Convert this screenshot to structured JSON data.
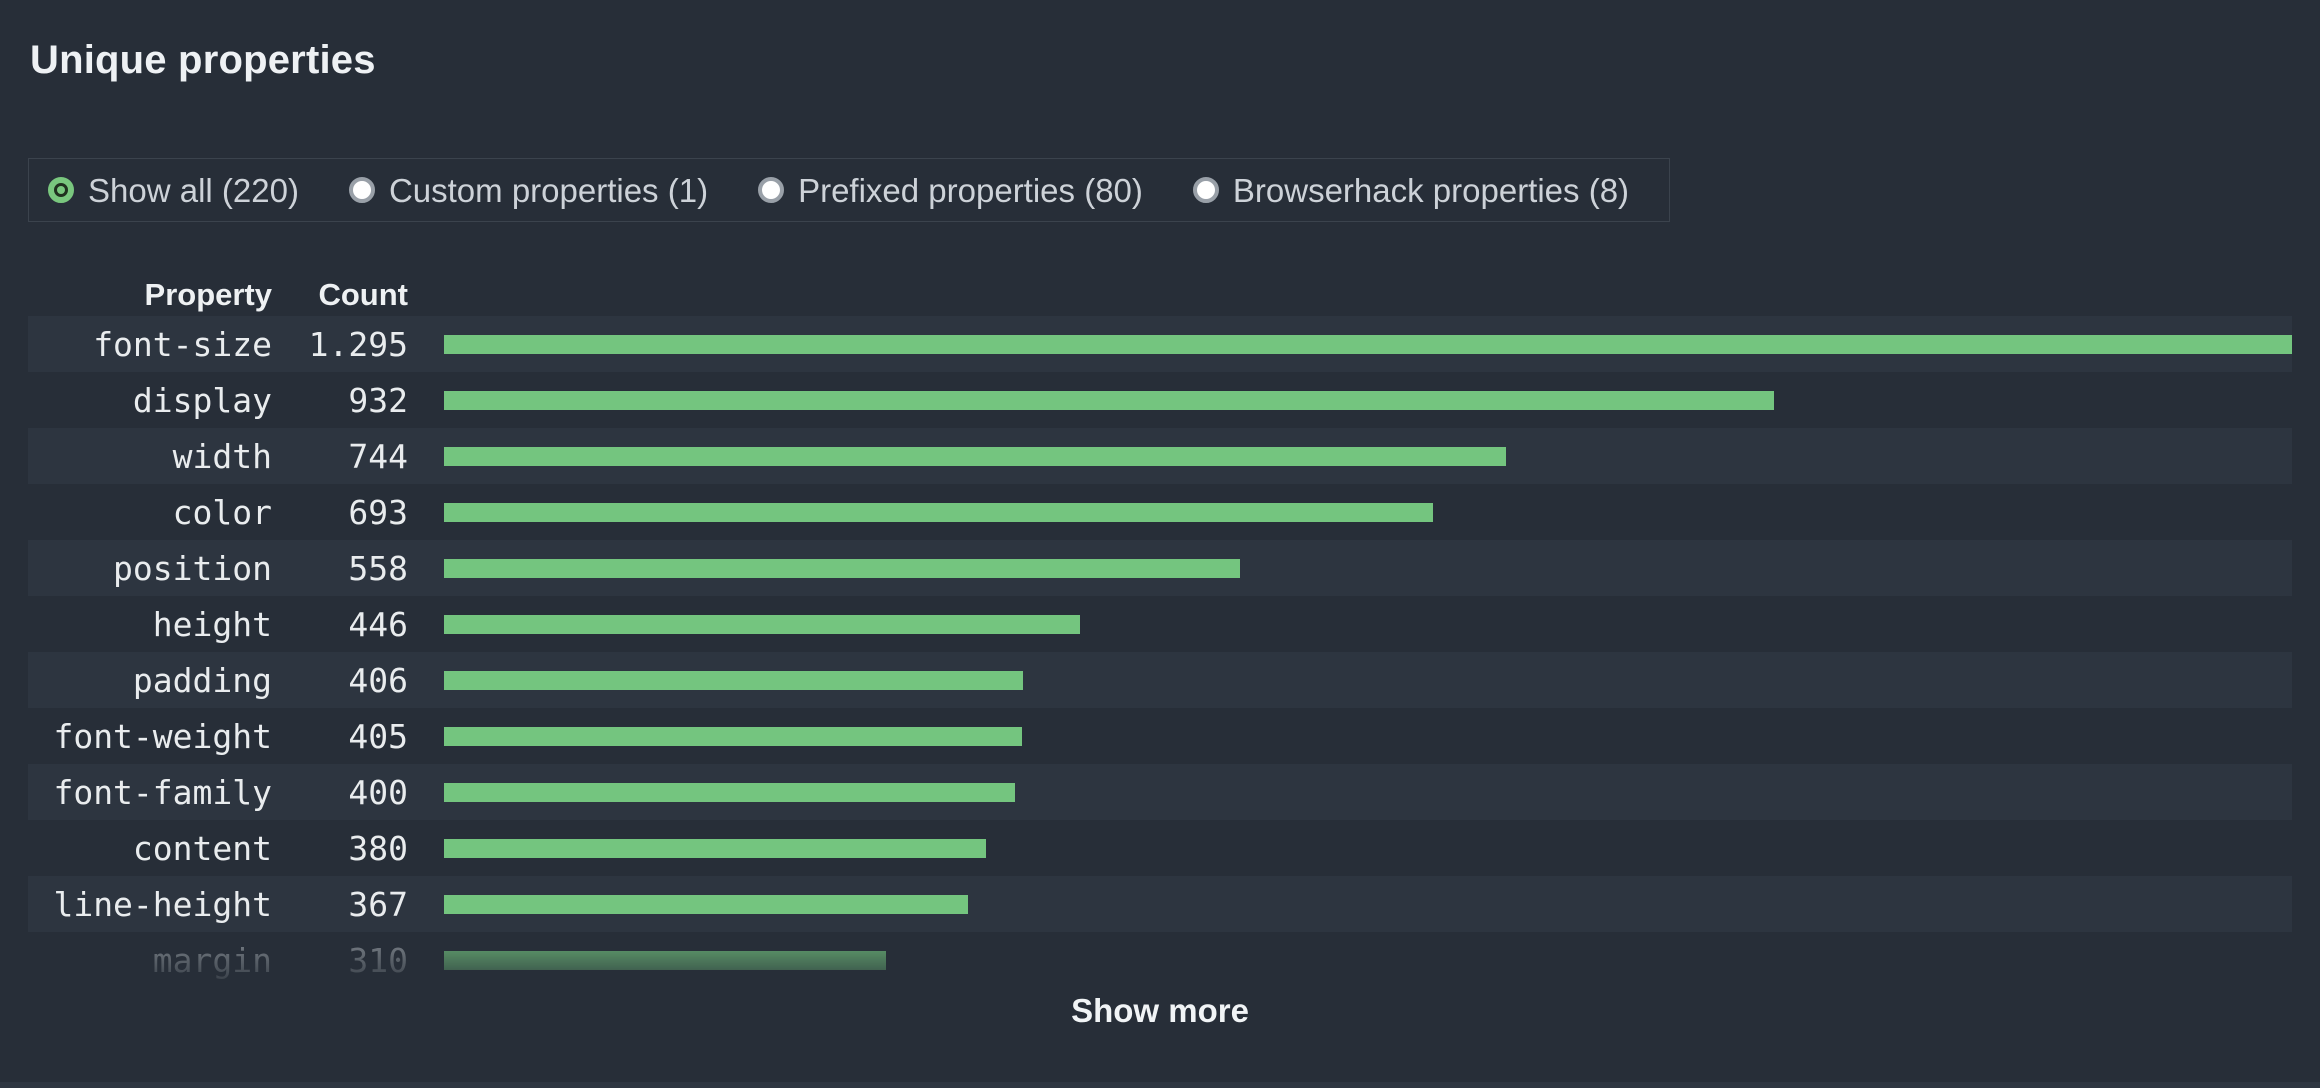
{
  "page": {
    "title": "Unique properties",
    "background_color": "#272e38",
    "row_stripe_color": "#2d3540",
    "accent_green": "#74c57f"
  },
  "filters": {
    "options": [
      {
        "label": "Show all (220)",
        "selected": true
      },
      {
        "label": "Custom properties (1)",
        "selected": false
      },
      {
        "label": "Prefixed properties (80)",
        "selected": false
      },
      {
        "label": "Browserhack properties (8)",
        "selected": false
      }
    ]
  },
  "table": {
    "headers": {
      "property": "Property",
      "count": "Count"
    }
  },
  "chart_data": {
    "type": "bar",
    "orientation": "horizontal",
    "title": "Unique properties",
    "categories": [
      "font-size",
      "display",
      "width",
      "color",
      "position",
      "height",
      "padding",
      "font-weight",
      "font-family",
      "content",
      "line-height",
      "margin"
    ],
    "values": [
      1295,
      932,
      744,
      693,
      558,
      446,
      406,
      405,
      400,
      380,
      367,
      310
    ],
    "value_labels": [
      "1.295",
      "932",
      "744",
      "693",
      "558",
      "446",
      "406",
      "405",
      "400",
      "380",
      "367",
      "310"
    ],
    "max_value": 1295,
    "bar_color": "#74c57f",
    "grid": false,
    "legend": false,
    "faded_last_row": true
  },
  "footer": {
    "show_more_label": "Show more"
  }
}
